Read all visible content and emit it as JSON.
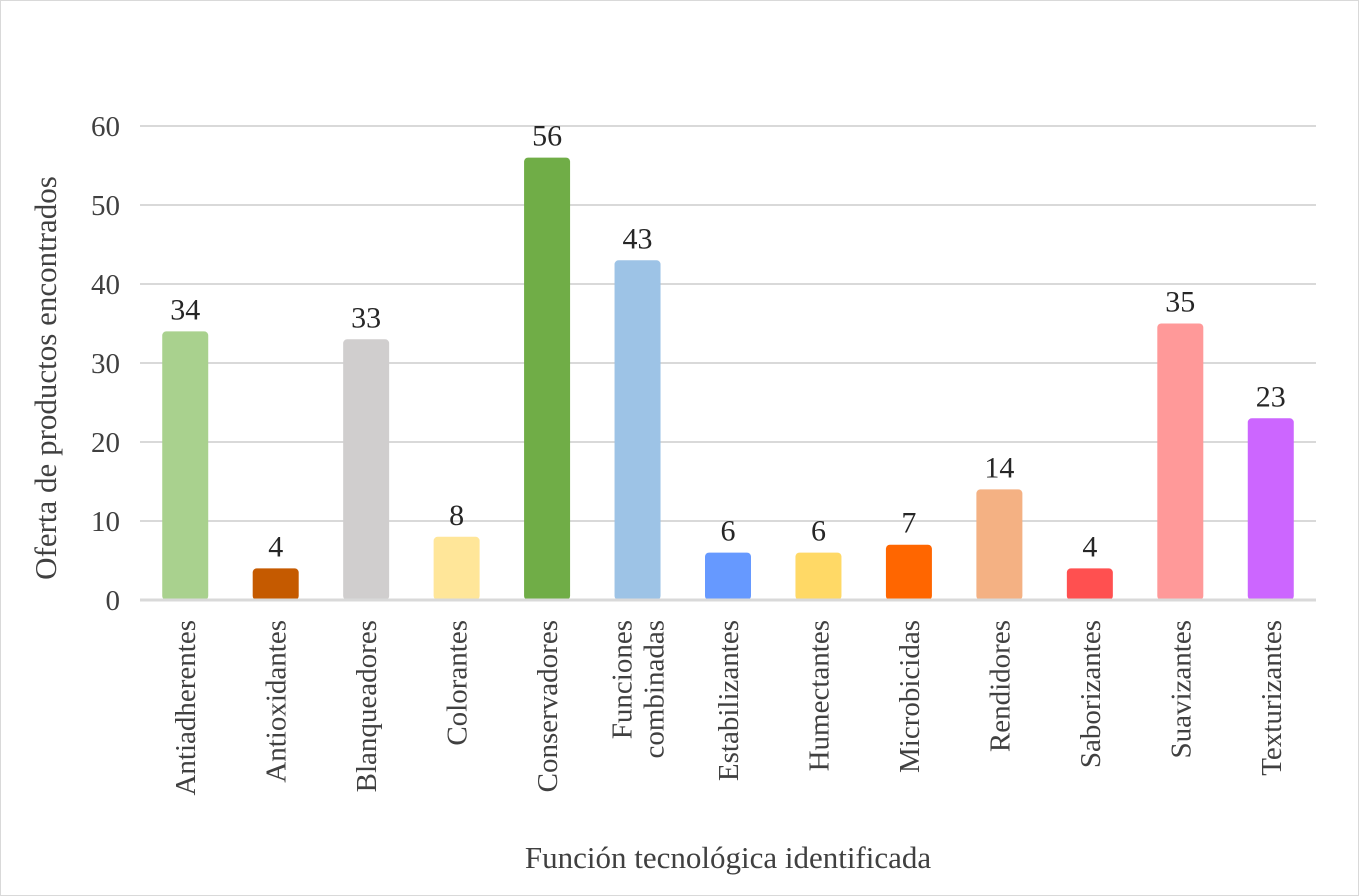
{
  "chart_data": {
    "type": "bar",
    "title": "",
    "xlabel": "Función tecnológica identificada",
    "ylabel": "Oferta de productos encontrados",
    "ylim": [
      0,
      60
    ],
    "yticks": [
      0,
      10,
      20,
      30,
      40,
      50,
      60
    ],
    "grid": true,
    "legend": "none",
    "categories": [
      [
        "Antiadherentes"
      ],
      [
        "Antioxidantes"
      ],
      [
        "Blanqueadores"
      ],
      [
        "Colorantes"
      ],
      [
        "Conservadores"
      ],
      [
        "Funciones",
        "combinadas"
      ],
      [
        "Estabilizantes"
      ],
      [
        "Humectantes"
      ],
      [
        "Microbicidas"
      ],
      [
        "Rendidores"
      ],
      [
        "Saborizantes"
      ],
      [
        "Suavizantes"
      ],
      [
        "Texturizantes"
      ]
    ],
    "values": [
      34,
      4,
      33,
      8,
      56,
      43,
      6,
      6,
      7,
      14,
      4,
      35,
      23
    ],
    "colors": [
      "#a9d18e",
      "#c55a00",
      "#d0cece",
      "#ffe699",
      "#70ad47",
      "#9dc3e6",
      "#6699ff",
      "#ffd966",
      "#ff6600",
      "#f4b183",
      "#ff5050",
      "#ff9999",
      "#cc66ff"
    ]
  }
}
